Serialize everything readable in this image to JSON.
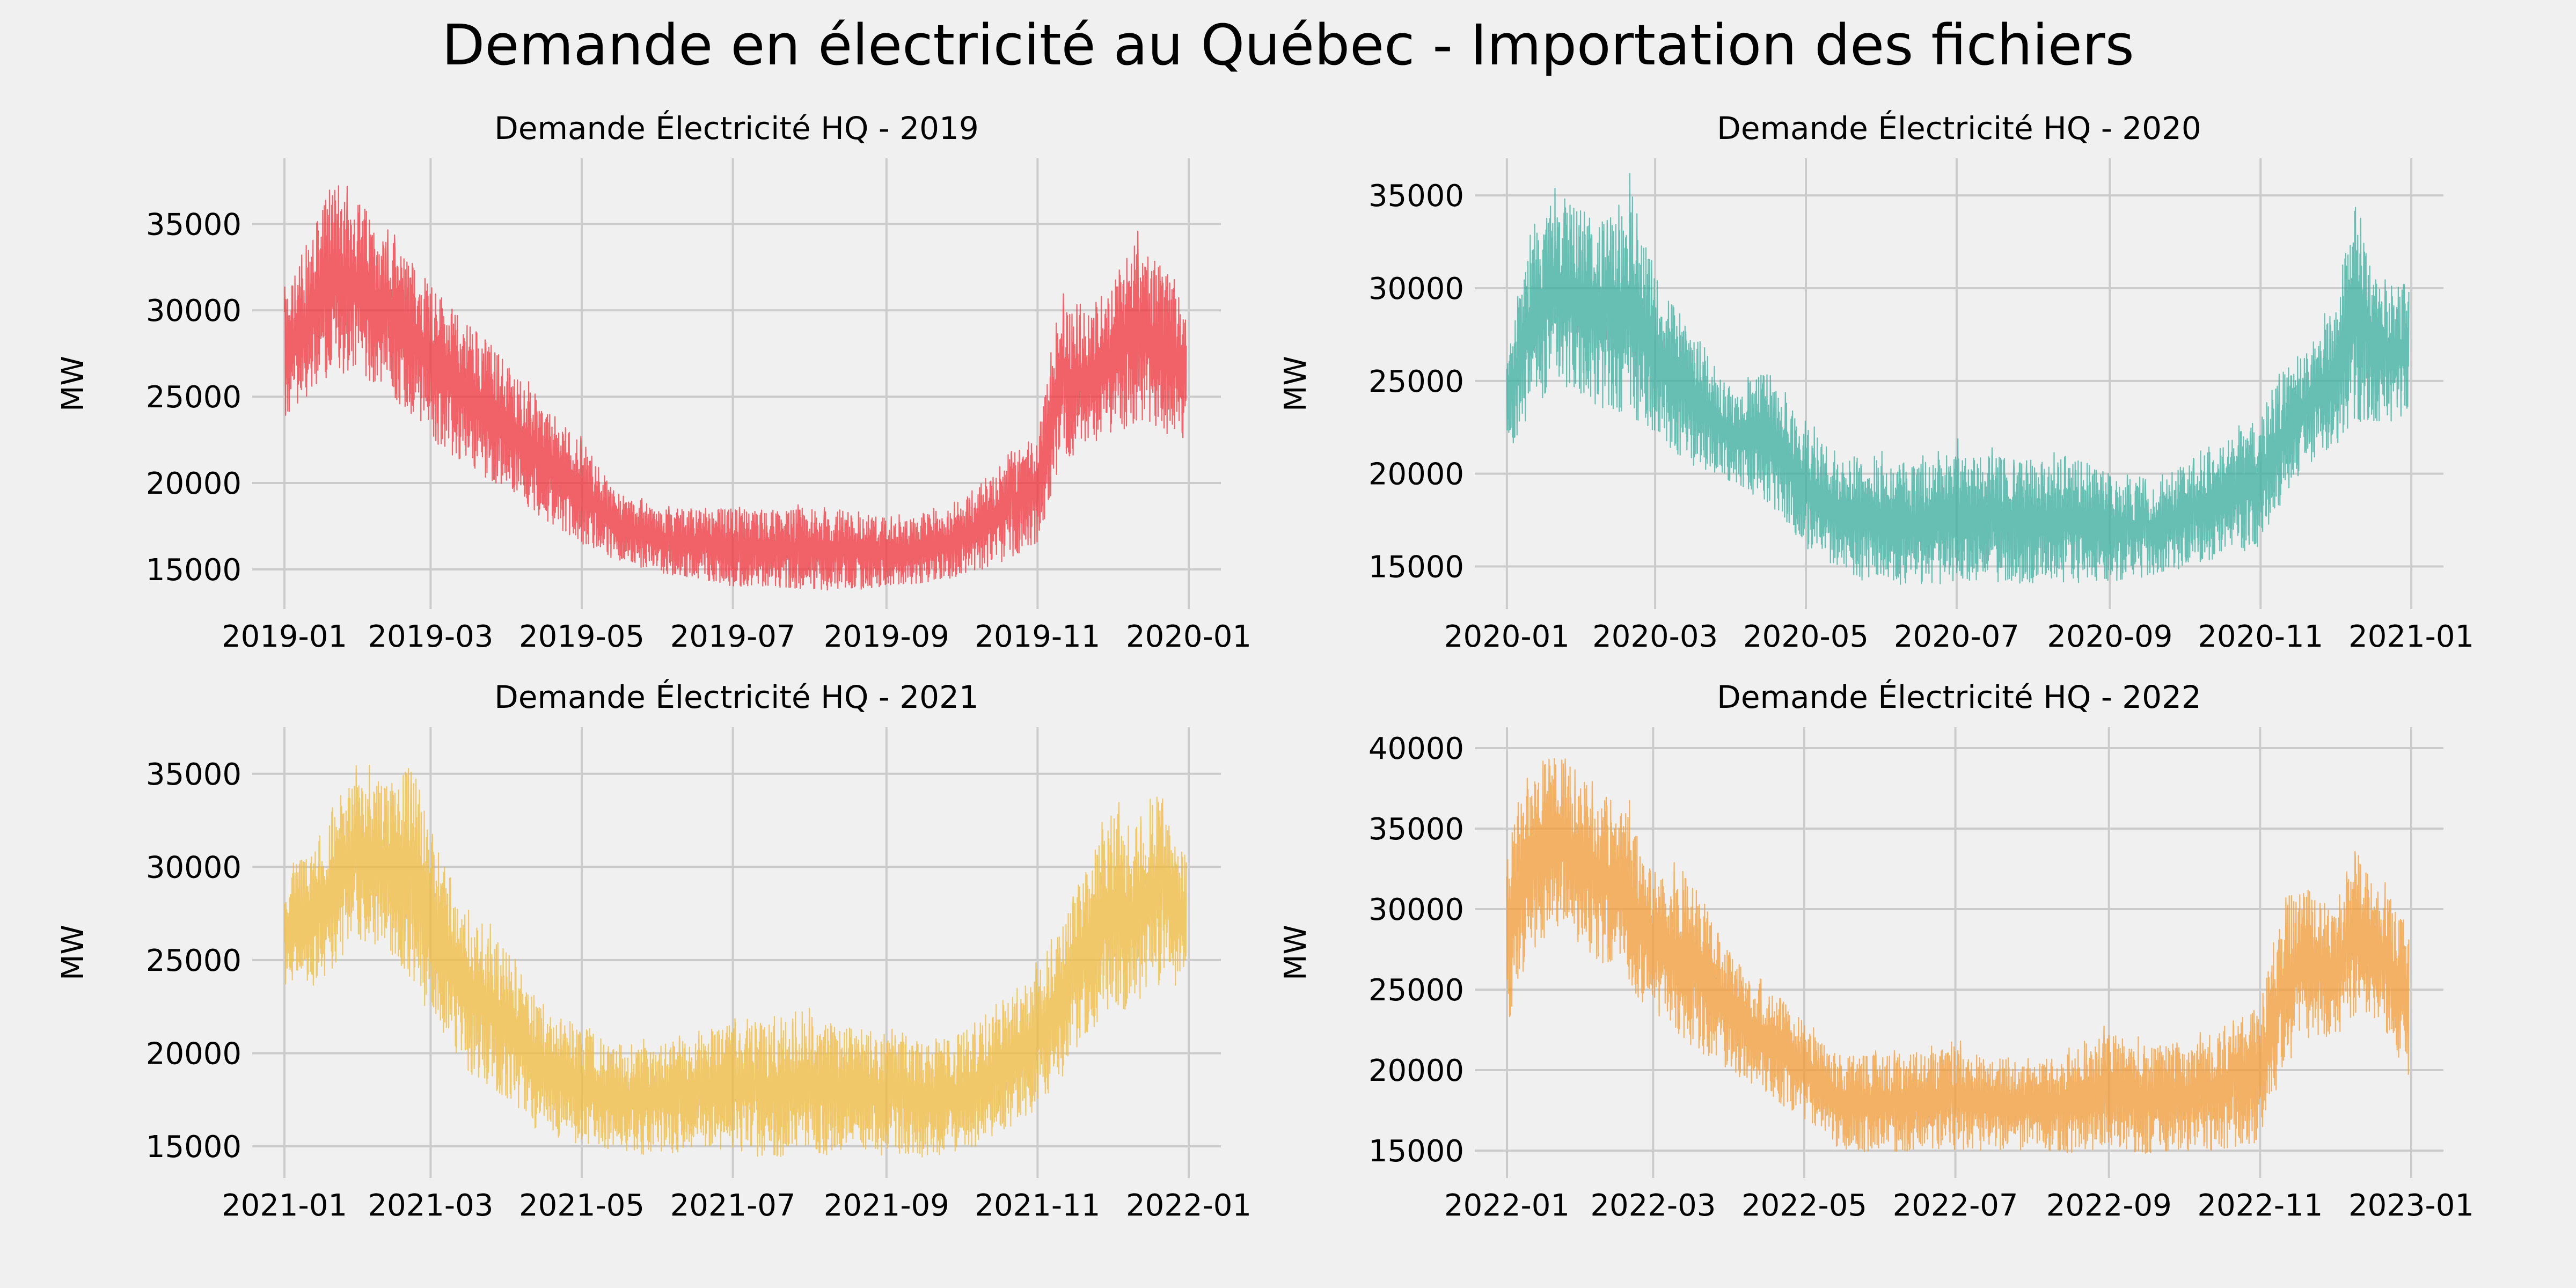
{
  "figure": {
    "suptitle": "Demande en électricité au Québec - Importation des fichiers"
  },
  "chart_data": [
    {
      "type": "line",
      "title": "Demande Électricité HQ - 2019",
      "xlabel": "",
      "ylabel": "MW",
      "color": "#f0313b",
      "x_ticks": [
        "2019-01",
        "2019-03",
        "2019-05",
        "2019-07",
        "2019-09",
        "2019-11",
        "2020-01"
      ],
      "y_ticks": [
        15000,
        20000,
        25000,
        30000,
        35000
      ],
      "xlim": [
        "2018-12-19",
        "2020-01-14"
      ],
      "ylim": [
        12700,
        38800
      ],
      "grid": true,
      "series": [
        {
          "x": [
            "2019-01-01",
            "2019-01-10",
            "2019-01-20",
            "2019-01-31",
            "2019-02-10",
            "2019-02-20",
            "2019-03-01",
            "2019-03-10",
            "2019-03-20",
            "2019-04-01",
            "2019-04-15",
            "2019-05-01",
            "2019-05-15",
            "2019-06-01",
            "2019-06-15",
            "2019-07-01",
            "2019-07-15",
            "2019-08-01",
            "2019-08-15",
            "2019-09-01",
            "2019-09-15",
            "2019-10-01",
            "2019-10-15",
            "2019-11-01",
            "2019-11-10",
            "2019-11-20",
            "2019-12-01",
            "2019-12-10",
            "2019-12-20",
            "2019-12-31"
          ],
          "low": [
            23500,
            24500,
            26500,
            26000,
            25500,
            24000,
            22500,
            21500,
            20500,
            19500,
            18000,
            16500,
            15500,
            14800,
            14500,
            14000,
            14000,
            13800,
            13800,
            13900,
            14200,
            14600,
            15200,
            16500,
            21000,
            22000,
            22500,
            23500,
            23000,
            22500
          ],
          "high": [
            31000,
            33500,
            37500,
            36500,
            34500,
            33000,
            32000,
            30000,
            29000,
            27000,
            24500,
            22500,
            19500,
            18500,
            18500,
            18500,
            18500,
            18500,
            18500,
            18000,
            18000,
            19000,
            21000,
            23000,
            30500,
            30000,
            31500,
            34500,
            33000,
            30000
          ]
        }
      ]
    },
    {
      "type": "line",
      "title": "Demande Électricité HQ - 2020",
      "xlabel": "",
      "ylabel": "MW",
      "color": "#3aafa0",
      "x_ticks": [
        "2020-01",
        "2020-03",
        "2020-05",
        "2020-07",
        "2020-09",
        "2020-11",
        "2021-01"
      ],
      "y_ticks": [
        15000,
        20000,
        25000,
        30000,
        35000
      ],
      "xlim": [
        "2019-12-19",
        "2021-01-14"
      ],
      "ylim": [
        12700,
        37000
      ],
      "grid": true,
      "series": [
        {
          "x": [
            "2020-01-01",
            "2020-01-10",
            "2020-01-20",
            "2020-01-31",
            "2020-02-10",
            "2020-02-20",
            "2020-03-01",
            "2020-03-15",
            "2020-04-01",
            "2020-04-15",
            "2020-05-01",
            "2020-05-15",
            "2020-06-01",
            "2020-06-15",
            "2020-07-01",
            "2020-07-15",
            "2020-08-01",
            "2020-08-15",
            "2020-09-01",
            "2020-09-15",
            "2020-10-01",
            "2020-10-15",
            "2020-11-01",
            "2020-11-10",
            "2020-11-20",
            "2020-12-01",
            "2020-12-10",
            "2020-12-20",
            "2020-12-31"
          ],
          "low": [
            21000,
            23000,
            25000,
            24000,
            23500,
            23000,
            22000,
            20500,
            19500,
            18500,
            16000,
            14500,
            14000,
            14000,
            14000,
            14200,
            14000,
            14100,
            14200,
            14400,
            14800,
            15500,
            16000,
            18500,
            20500,
            21500,
            22500,
            22500,
            23000
          ],
          "high": [
            26000,
            33000,
            35000,
            34500,
            33500,
            35500,
            30500,
            28000,
            24500,
            25500,
            22500,
            21000,
            21000,
            20500,
            21500,
            21000,
            20500,
            21000,
            20000,
            19500,
            20500,
            21500,
            23000,
            25500,
            27000,
            29000,
            35500,
            30000,
            30500
          ]
        }
      ]
    },
    {
      "type": "line",
      "title": "Demande Électricité HQ - 2021",
      "xlabel": "",
      "ylabel": "MW",
      "color": "#f0bb3c",
      "x_ticks": [
        "2021-01",
        "2021-03",
        "2021-05",
        "2021-07",
        "2021-09",
        "2021-11",
        "2022-01"
      ],
      "y_ticks": [
        15000,
        20000,
        25000,
        30000,
        35000
      ],
      "xlim": [
        "2020-12-19",
        "2022-01-14"
      ],
      "ylim": [
        13300,
        37500
      ],
      "grid": true,
      "series": [
        {
          "x": [
            "2021-01-01",
            "2021-01-10",
            "2021-01-20",
            "2021-01-31",
            "2021-02-10",
            "2021-02-20",
            "2021-03-01",
            "2021-03-15",
            "2021-04-01",
            "2021-04-15",
            "2021-05-01",
            "2021-05-15",
            "2021-06-01",
            "2021-06-15",
            "2021-07-01",
            "2021-07-15",
            "2021-08-01",
            "2021-08-15",
            "2021-09-01",
            "2021-09-15",
            "2021-10-01",
            "2021-10-15",
            "2021-11-01",
            "2021-11-10",
            "2021-11-20",
            "2021-12-01",
            "2021-12-10",
            "2021-12-20",
            "2021-12-31"
          ],
          "low": [
            23000,
            23500,
            24000,
            26000,
            25500,
            24000,
            22000,
            19000,
            17500,
            15500,
            15000,
            14500,
            14600,
            14700,
            14600,
            14400,
            14500,
            14600,
            14500,
            14400,
            14500,
            15500,
            17000,
            18500,
            21000,
            22000,
            22500,
            23500,
            23500
          ],
          "high": [
            30000,
            30500,
            33000,
            35500,
            34500,
            35500,
            32000,
            28000,
            25500,
            22500,
            21500,
            20500,
            20500,
            21000,
            21500,
            21500,
            22000,
            21500,
            21000,
            20500,
            21000,
            22500,
            24500,
            27000,
            29500,
            33500,
            32000,
            34000,
            30500
          ]
        }
      ]
    },
    {
      "type": "line",
      "title": "Demande Électricité HQ - 2022",
      "xlabel": "",
      "ylabel": "MW",
      "color": "#f39c35",
      "x_ticks": [
        "2022-01",
        "2022-03",
        "2022-05",
        "2022-07",
        "2022-09",
        "2022-11",
        "2023-01"
      ],
      "y_ticks": [
        15000,
        20000,
        25000,
        30000,
        35000,
        40000
      ],
      "xlim": [
        "2021-12-19",
        "2023-01-14"
      ],
      "ylim": [
        13300,
        41300
      ],
      "grid": true,
      "series": [
        {
          "x": [
            "2022-01-01",
            "2022-01-10",
            "2022-01-20",
            "2022-01-31",
            "2022-02-10",
            "2022-02-20",
            "2022-03-01",
            "2022-03-15",
            "2022-04-01",
            "2022-04-15",
            "2022-05-01",
            "2022-05-15",
            "2022-06-01",
            "2022-06-15",
            "2022-07-01",
            "2022-07-15",
            "2022-08-01",
            "2022-08-15",
            "2022-09-01",
            "2022-09-15",
            "2022-10-01",
            "2022-10-15",
            "2022-11-01",
            "2022-11-10",
            "2022-11-20",
            "2022-12-01",
            "2022-12-10",
            "2022-12-20",
            "2022-12-31"
          ],
          "low": [
            22500,
            27000,
            29000,
            27500,
            26500,
            24500,
            23500,
            21500,
            20000,
            18500,
            17000,
            15000,
            14800,
            15000,
            15000,
            15000,
            15000,
            14800,
            14800,
            14800,
            15000,
            15000,
            15500,
            20000,
            22000,
            22000,
            23500,
            23000,
            19500
          ],
          "high": [
            35000,
            38500,
            40000,
            38000,
            37000,
            36000,
            32000,
            32500,
            27000,
            25500,
            23000,
            21000,
            21000,
            21000,
            21500,
            21000,
            20500,
            21000,
            22500,
            21500,
            21500,
            22500,
            24000,
            30000,
            31500,
            30000,
            33500,
            31500,
            29000
          ]
        }
      ]
    }
  ]
}
